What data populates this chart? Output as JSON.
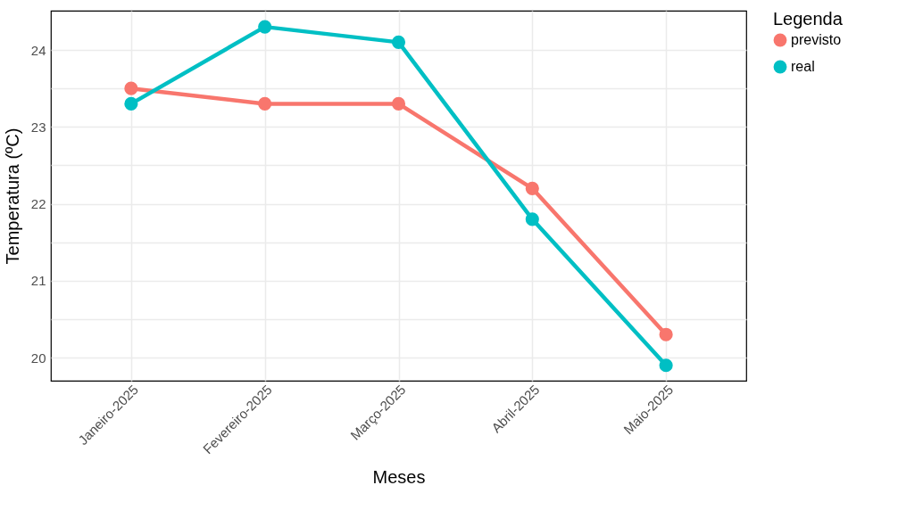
{
  "chart_data": {
    "type": "line",
    "xlabel": "Meses",
    "ylabel": "Temperatura (ºC)",
    "legend_title": "Legenda",
    "categories": [
      "Janeiro-2025",
      "Fevereiro-2025",
      "Março-2025",
      "Abril-2025",
      "Maio-2025"
    ],
    "series": [
      {
        "name": "previsto",
        "color": "#f8766d",
        "values": [
          23.5,
          23.3,
          23.3,
          22.2,
          20.3
        ]
      },
      {
        "name": "real",
        "color": "#00bfc4",
        "values": [
          23.3,
          24.3,
          24.1,
          21.8,
          19.9
        ]
      }
    ],
    "ylim": [
      19.7,
      24.51
    ],
    "yticks": [
      20,
      {
        "value": 20.5,
        "label": null
      },
      21,
      {
        "value": 21.5,
        "label": null
      },
      22,
      {
        "value": 22.5,
        "label": null
      },
      23,
      {
        "value": 23.5,
        "label": null
      },
      24
    ],
    "grid": true,
    "legend": "right",
    "marker": "circle",
    "line_style": "solid"
  }
}
